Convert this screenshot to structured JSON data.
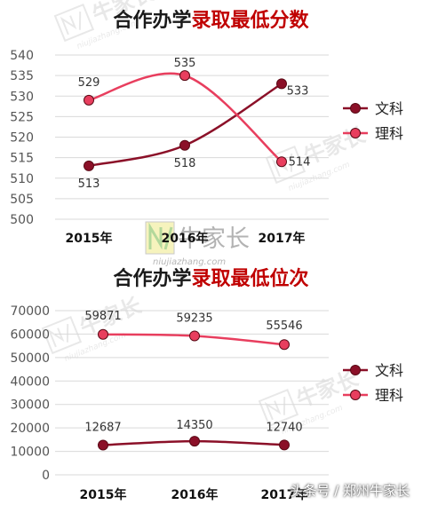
{
  "charts": [
    {
      "title_dark": "合作办学",
      "title_red": "录取最低分数"
    },
    {
      "title_dark": "合作办学",
      "title_red": "录取最低位次"
    }
  ],
  "watermark": "牛家长",
  "watermark_url": "niujiazhang.com",
  "attribution": "头条号 / 郑州牛家长",
  "colors": {
    "wenke": "#8b1028",
    "like": "#e83e5e",
    "grid": "#d9d9d9",
    "title_red": "#c00000"
  },
  "chart_data": [
    {
      "type": "line",
      "title": "合作办学录取最低分数",
      "categories": [
        "2015年",
        "2016年",
        "2017年"
      ],
      "series": [
        {
          "name": "文科",
          "values": [
            513,
            518,
            533
          ]
        },
        {
          "name": "理科",
          "values": [
            529,
            535,
            514
          ]
        }
      ],
      "yticks": [
        "500",
        "505",
        "510",
        "515",
        "520",
        "525",
        "530",
        "535",
        "540"
      ],
      "ylim": [
        500,
        540
      ],
      "grid": true,
      "legend": "right"
    },
    {
      "type": "line",
      "title": "合作办学录取最低位次",
      "categories": [
        "2015年",
        "2016年",
        "2017年"
      ],
      "series": [
        {
          "name": "文科",
          "values": [
            12687,
            14350,
            12740
          ]
        },
        {
          "name": "理科",
          "values": [
            59871,
            59235,
            55546
          ]
        }
      ],
      "yticks": [
        "0",
        "10000",
        "20000",
        "30000",
        "40000",
        "50000",
        "60000",
        "70000"
      ],
      "ylim": [
        0,
        70000
      ],
      "grid": true,
      "legend": "right"
    }
  ]
}
